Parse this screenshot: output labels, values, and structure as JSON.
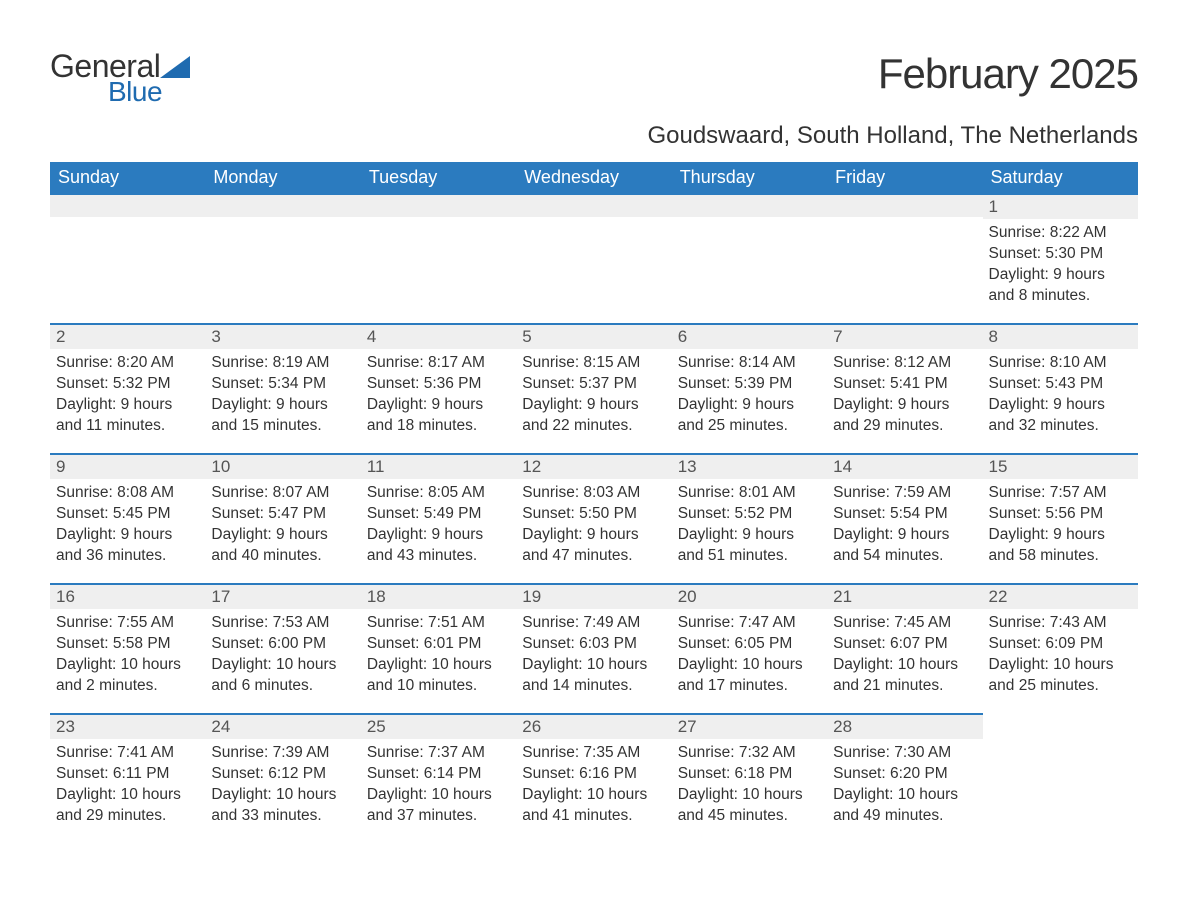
{
  "logo": {
    "word1": "General",
    "word2": "Blue",
    "word1_color": "#333333",
    "word2_color": "#1f6bb0"
  },
  "title": "February 2025",
  "location": "Goudswaard, South Holland, The Netherlands",
  "colors": {
    "header_bg": "#2b7bbf",
    "header_fg": "#ffffff",
    "daynum_bg": "#efefef",
    "daynum_border": "#2b7bbf",
    "text": "#333333",
    "background": "#ffffff"
  },
  "fonts": {
    "title_size": 42,
    "location_size": 24,
    "dayhead_size": 18,
    "daynum_size": 17,
    "body_size": 15.5
  },
  "day_headers": [
    "Sunday",
    "Monday",
    "Tuesday",
    "Wednesday",
    "Thursday",
    "Friday",
    "Saturday"
  ],
  "weeks": [
    [
      null,
      null,
      null,
      null,
      null,
      null,
      {
        "n": "1",
        "sunrise": "8:22 AM",
        "sunset": "5:30 PM",
        "daylight": "9 hours and 8 minutes."
      }
    ],
    [
      {
        "n": "2",
        "sunrise": "8:20 AM",
        "sunset": "5:32 PM",
        "daylight": "9 hours and 11 minutes."
      },
      {
        "n": "3",
        "sunrise": "8:19 AM",
        "sunset": "5:34 PM",
        "daylight": "9 hours and 15 minutes."
      },
      {
        "n": "4",
        "sunrise": "8:17 AM",
        "sunset": "5:36 PM",
        "daylight": "9 hours and 18 minutes."
      },
      {
        "n": "5",
        "sunrise": "8:15 AM",
        "sunset": "5:37 PM",
        "daylight": "9 hours and 22 minutes."
      },
      {
        "n": "6",
        "sunrise": "8:14 AM",
        "sunset": "5:39 PM",
        "daylight": "9 hours and 25 minutes."
      },
      {
        "n": "7",
        "sunrise": "8:12 AM",
        "sunset": "5:41 PM",
        "daylight": "9 hours and 29 minutes."
      },
      {
        "n": "8",
        "sunrise": "8:10 AM",
        "sunset": "5:43 PM",
        "daylight": "9 hours and 32 minutes."
      }
    ],
    [
      {
        "n": "9",
        "sunrise": "8:08 AM",
        "sunset": "5:45 PM",
        "daylight": "9 hours and 36 minutes."
      },
      {
        "n": "10",
        "sunrise": "8:07 AM",
        "sunset": "5:47 PM",
        "daylight": "9 hours and 40 minutes."
      },
      {
        "n": "11",
        "sunrise": "8:05 AM",
        "sunset": "5:49 PM",
        "daylight": "9 hours and 43 minutes."
      },
      {
        "n": "12",
        "sunrise": "8:03 AM",
        "sunset": "5:50 PM",
        "daylight": "9 hours and 47 minutes."
      },
      {
        "n": "13",
        "sunrise": "8:01 AM",
        "sunset": "5:52 PM",
        "daylight": "9 hours and 51 minutes."
      },
      {
        "n": "14",
        "sunrise": "7:59 AM",
        "sunset": "5:54 PM",
        "daylight": "9 hours and 54 minutes."
      },
      {
        "n": "15",
        "sunrise": "7:57 AM",
        "sunset": "5:56 PM",
        "daylight": "9 hours and 58 minutes."
      }
    ],
    [
      {
        "n": "16",
        "sunrise": "7:55 AM",
        "sunset": "5:58 PM",
        "daylight": "10 hours and 2 minutes."
      },
      {
        "n": "17",
        "sunrise": "7:53 AM",
        "sunset": "6:00 PM",
        "daylight": "10 hours and 6 minutes."
      },
      {
        "n": "18",
        "sunrise": "7:51 AM",
        "sunset": "6:01 PM",
        "daylight": "10 hours and 10 minutes."
      },
      {
        "n": "19",
        "sunrise": "7:49 AM",
        "sunset": "6:03 PM",
        "daylight": "10 hours and 14 minutes."
      },
      {
        "n": "20",
        "sunrise": "7:47 AM",
        "sunset": "6:05 PM",
        "daylight": "10 hours and 17 minutes."
      },
      {
        "n": "21",
        "sunrise": "7:45 AM",
        "sunset": "6:07 PM",
        "daylight": "10 hours and 21 minutes."
      },
      {
        "n": "22",
        "sunrise": "7:43 AM",
        "sunset": "6:09 PM",
        "daylight": "10 hours and 25 minutes."
      }
    ],
    [
      {
        "n": "23",
        "sunrise": "7:41 AM",
        "sunset": "6:11 PM",
        "daylight": "10 hours and 29 minutes."
      },
      {
        "n": "24",
        "sunrise": "7:39 AM",
        "sunset": "6:12 PM",
        "daylight": "10 hours and 33 minutes."
      },
      {
        "n": "25",
        "sunrise": "7:37 AM",
        "sunset": "6:14 PM",
        "daylight": "10 hours and 37 minutes."
      },
      {
        "n": "26",
        "sunrise": "7:35 AM",
        "sunset": "6:16 PM",
        "daylight": "10 hours and 41 minutes."
      },
      {
        "n": "27",
        "sunrise": "7:32 AM",
        "sunset": "6:18 PM",
        "daylight": "10 hours and 45 minutes."
      },
      {
        "n": "28",
        "sunrise": "7:30 AM",
        "sunset": "6:20 PM",
        "daylight": "10 hours and 49 minutes."
      },
      null
    ]
  ],
  "labels": {
    "sunrise": "Sunrise:",
    "sunset": "Sunset:",
    "daylight": "Daylight:"
  }
}
